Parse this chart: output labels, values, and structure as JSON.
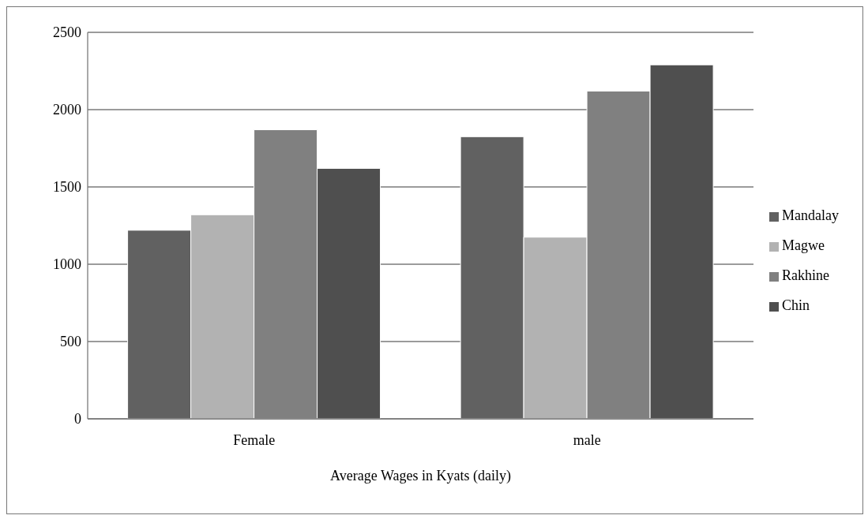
{
  "chart_data": {
    "type": "bar",
    "xlabel": "Average Wages in Kyats (daily)",
    "categories": [
      "Female",
      "male"
    ],
    "series": [
      {
        "name": "Mandalay",
        "color": "#616161",
        "values": [
          1220,
          1825
        ]
      },
      {
        "name": "Magwe",
        "color": "#b2b2b2",
        "values": [
          1320,
          1175
        ]
      },
      {
        "name": "Rakhine",
        "color": "#808080",
        "values": [
          1870,
          2120
        ]
      },
      {
        "name": "Chin",
        "color": "#4f4f4f",
        "values": [
          1620,
          2290
        ]
      }
    ],
    "ylim": [
      0,
      2500
    ],
    "yticks": [
      0,
      500,
      1000,
      1500,
      2000,
      2500
    ],
    "grid": "y",
    "legend": "right"
  }
}
